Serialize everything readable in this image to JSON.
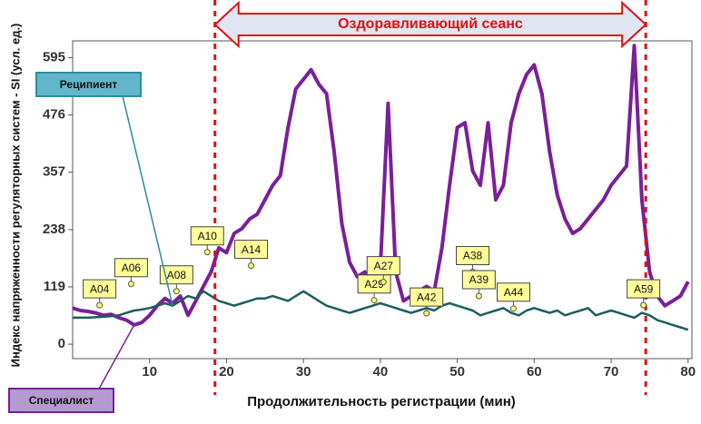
{
  "chart_data": {
    "type": "line",
    "x_label": "Продолжительность регистрации (мин)",
    "y_label": "Индекс напряженности регуляторных систем - SI (усл. ед.)",
    "xlim": [
      0,
      80.5
    ],
    "ylim": [
      -30,
      630
    ],
    "xticks": [
      10,
      20,
      30,
      40,
      50,
      60,
      70,
      80
    ],
    "yticks": [
      0,
      119,
      238,
      357,
      476,
      595
    ],
    "x": [
      0,
      1,
      2,
      3,
      4,
      5,
      6,
      7,
      8,
      9,
      10,
      11,
      12,
      13,
      14,
      15,
      16,
      17,
      18,
      19,
      20,
      21,
      22,
      23,
      24,
      25,
      26,
      27,
      28,
      29,
      30,
      31,
      32,
      33,
      34,
      35,
      36,
      37,
      38,
      39,
      40,
      41,
      42,
      43,
      44,
      45,
      46,
      47,
      48,
      49,
      50,
      51,
      52,
      53,
      54,
      55,
      56,
      57,
      58,
      59,
      60,
      61,
      62,
      63,
      64,
      65,
      66,
      67,
      68,
      69,
      70,
      71,
      72,
      73,
      74,
      75,
      76,
      77,
      78,
      79,
      80
    ],
    "series": [
      {
        "name": "Специалист",
        "color": "#7a1f9a",
        "values": [
          75,
          70,
          68,
          65,
          60,
          62,
          55,
          50,
          40,
          45,
          60,
          80,
          95,
          85,
          100,
          60,
          90,
          120,
          150,
          200,
          190,
          230,
          240,
          260,
          270,
          300,
          330,
          350,
          450,
          530,
          550,
          570,
          540,
          520,
          400,
          250,
          170,
          140,
          150,
          120,
          160,
          500,
          150,
          90,
          100,
          110,
          120,
          110,
          200,
          330,
          450,
          460,
          360,
          330,
          460,
          300,
          330,
          460,
          520,
          560,
          580,
          520,
          400,
          310,
          260,
          230,
          240,
          260,
          280,
          300,
          330,
          350,
          370,
          620,
          300,
          150,
          100,
          80,
          90,
          100,
          130
        ]
      },
      {
        "name": "Реципиент",
        "color": "#1d5e5e",
        "values": [
          55,
          55,
          55,
          56,
          57,
          58,
          60,
          65,
          70,
          72,
          75,
          80,
          85,
          80,
          90,
          100,
          95,
          110,
          100,
          90,
          85,
          80,
          85,
          90,
          95,
          95,
          100,
          95,
          90,
          100,
          110,
          100,
          90,
          80,
          75,
          70,
          65,
          70,
          75,
          80,
          85,
          80,
          75,
          70,
          65,
          70,
          75,
          70,
          80,
          85,
          80,
          75,
          70,
          60,
          65,
          70,
          75,
          65,
          60,
          70,
          75,
          70,
          65,
          70,
          60,
          65,
          70,
          75,
          60,
          65,
          70,
          65,
          60,
          55,
          65,
          60,
          50,
          45,
          40,
          35,
          30
        ]
      }
    ],
    "session": {
      "label": "Оздоравливающий сеанс",
      "start": 18.5,
      "end": 74.5
    },
    "annotations": [
      {
        "label": "A04",
        "x": 3.5,
        "y": 115
      },
      {
        "label": "A06",
        "x": 7.6,
        "y": 159
      },
      {
        "label": "A08",
        "x": 13.5,
        "y": 144
      },
      {
        "label": "A10",
        "x": 17.5,
        "y": 225
      },
      {
        "label": "A14",
        "x": 23.2,
        "y": 197
      },
      {
        "label": "A29",
        "x": 39.2,
        "y": 125
      },
      {
        "label": "A27",
        "x": 40.4,
        "y": 163
      },
      {
        "label": "A42",
        "x": 46,
        "y": 98
      },
      {
        "label": "A38",
        "x": 52,
        "y": 184
      },
      {
        "label": "A39",
        "x": 52.8,
        "y": 134
      },
      {
        "label": "A44",
        "x": 57.3,
        "y": 108
      },
      {
        "label": "A59",
        "x": 74.2,
        "y": 115
      }
    ]
  }
}
